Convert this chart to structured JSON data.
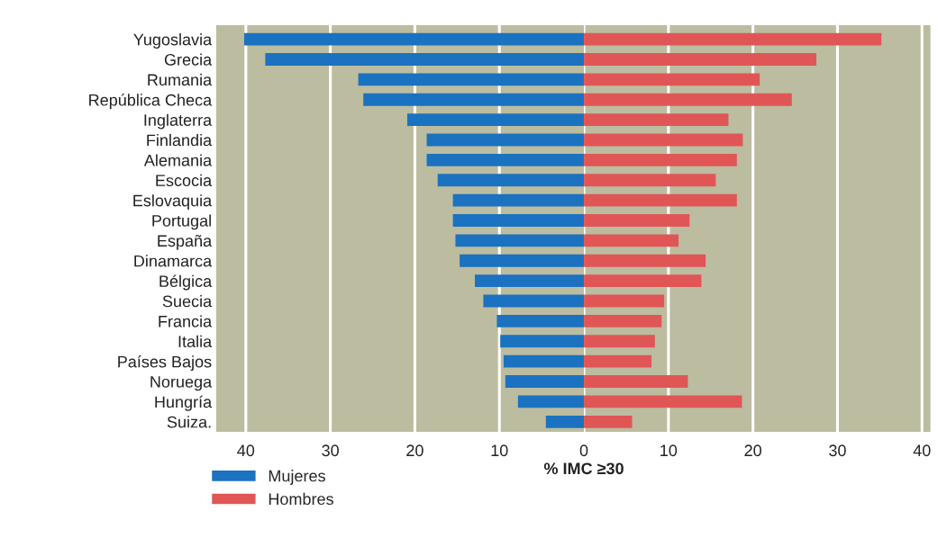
{
  "chart_data": [
    {
      "type": "bar",
      "orientation": "horizontal",
      "categories": [
        "Yugoslavia",
        "Grecia",
        "Rumania",
        "República Checa",
        "Inglaterra",
        "Finlandia",
        "Alemania",
        "Escocia",
        "Eslovaquia",
        "Portugal",
        "España",
        "Dinamarca",
        "Bélgica",
        "Suecia",
        "Francia",
        "Italia",
        "Países Bajos",
        "Noruega",
        "Hungría",
        "Suiza."
      ],
      "series": [
        {
          "name": "Mujeres",
          "color": "#1a72c0",
          "values": [
            40.2,
            37.7,
            26.7,
            26.1,
            20.9,
            18.6,
            18.6,
            17.3,
            15.5,
            15.5,
            15.2,
            14.7,
            12.9,
            11.9,
            10.3,
            9.9,
            9.5,
            9.3,
            7.8,
            4.5
          ]
        }
      ],
      "xlim": [
        43.5,
        0
      ],
      "xticks": [
        40,
        30,
        20,
        10
      ],
      "grid": "x",
      "legend": "bottom left"
    },
    {
      "type": "bar",
      "orientation": "horizontal",
      "xlabel": "% IMC ≥30",
      "series": [
        {
          "name": "Hombres",
          "color": "#e05656",
          "values": [
            35.2,
            27.5,
            20.8,
            24.6,
            17.1,
            18.8,
            18.1,
            15.6,
            18.1,
            12.5,
            11.2,
            14.4,
            13.9,
            9.5,
            9.2,
            8.4,
            8.0,
            12.3,
            18.7,
            5.7
          ]
        }
      ],
      "xlim": [
        0,
        41
      ],
      "xticks": [
        0,
        10,
        20,
        30,
        40
      ],
      "grid": "x",
      "legend": "bottom left",
      "tick_labels": "x"
    }
  ]
}
